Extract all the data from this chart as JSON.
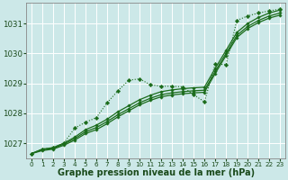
{
  "background_color": "#cce8e8",
  "grid_color": "#ffffff",
  "line_color": "#1a6b1a",
  "xlabel": "Graphe pression niveau de la mer (hPa)",
  "xlabel_fontsize": 7,
  "tick_fontsize": 6,
  "xlim": [
    -0.5,
    23.5
  ],
  "ylim": [
    1026.5,
    1031.7
  ],
  "yticks": [
    1027,
    1028,
    1029,
    1030,
    1031
  ],
  "xticks": [
    0,
    1,
    2,
    3,
    4,
    5,
    6,
    7,
    8,
    9,
    10,
    11,
    12,
    13,
    14,
    15,
    16,
    17,
    18,
    19,
    20,
    21,
    22,
    23
  ],
  "series_dotted": [
    1026.65,
    1026.8,
    1026.85,
    1027.0,
    1027.5,
    1027.7,
    1027.85,
    1028.35,
    1028.75,
    1029.1,
    1029.15,
    1028.95,
    1028.9,
    1028.9,
    1028.88,
    1028.62,
    1028.38,
    1029.65,
    1029.62,
    1031.1,
    1031.25,
    1031.35,
    1031.42,
    1031.48
  ],
  "series_linear1": [
    1026.65,
    1026.8,
    1026.85,
    1027.0,
    1027.2,
    1027.45,
    1027.6,
    1027.8,
    1028.05,
    1028.25,
    1028.45,
    1028.6,
    1028.72,
    1028.78,
    1028.82,
    1028.85,
    1028.87,
    1029.5,
    1030.1,
    1030.7,
    1031.0,
    1031.2,
    1031.35,
    1031.45
  ],
  "series_linear2": [
    1026.65,
    1026.78,
    1026.82,
    1026.97,
    1027.15,
    1027.38,
    1027.52,
    1027.72,
    1027.95,
    1028.15,
    1028.35,
    1028.5,
    1028.62,
    1028.68,
    1028.72,
    1028.75,
    1028.77,
    1029.4,
    1030.0,
    1030.6,
    1030.9,
    1031.1,
    1031.25,
    1031.35
  ],
  "series_linear3": [
    1026.65,
    1026.75,
    1026.8,
    1026.93,
    1027.1,
    1027.32,
    1027.45,
    1027.65,
    1027.88,
    1028.08,
    1028.28,
    1028.43,
    1028.55,
    1028.61,
    1028.65,
    1028.68,
    1028.7,
    1029.33,
    1029.93,
    1030.53,
    1030.83,
    1031.03,
    1031.18,
    1031.28
  ]
}
